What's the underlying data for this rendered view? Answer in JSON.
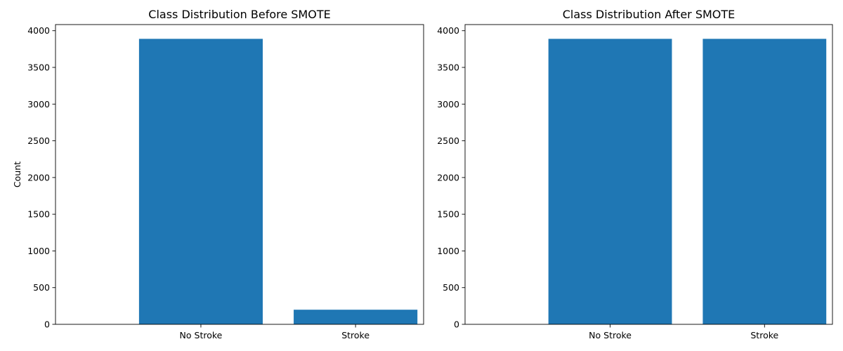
{
  "chart_data": [
    {
      "type": "bar",
      "title": "Class Distribution Before SMOTE",
      "xlabel": "",
      "ylabel": "Count",
      "categories": [
        "No Stroke",
        "Stroke"
      ],
      "values": [
        3889,
        199
      ],
      "yticks": [
        "0",
        "500",
        "1000",
        "1500",
        "2000",
        "2500",
        "3000",
        "3500",
        "4000"
      ],
      "ylim": [
        0,
        4083.45
      ],
      "grid": false,
      "legend": "none",
      "bar_color": "#1f77b4"
    },
    {
      "type": "bar",
      "title": "Class Distribution After SMOTE",
      "xlabel": "",
      "ylabel": "",
      "categories": [
        "No Stroke",
        "Stroke"
      ],
      "values": [
        3889,
        3889
      ],
      "yticks": [
        "0",
        "500",
        "1000",
        "1500",
        "2000",
        "2500",
        "3000",
        "3500",
        "4000"
      ],
      "ylim": [
        0,
        4083.45
      ],
      "grid": false,
      "legend": "none",
      "bar_color": "#1f77b4"
    }
  ]
}
